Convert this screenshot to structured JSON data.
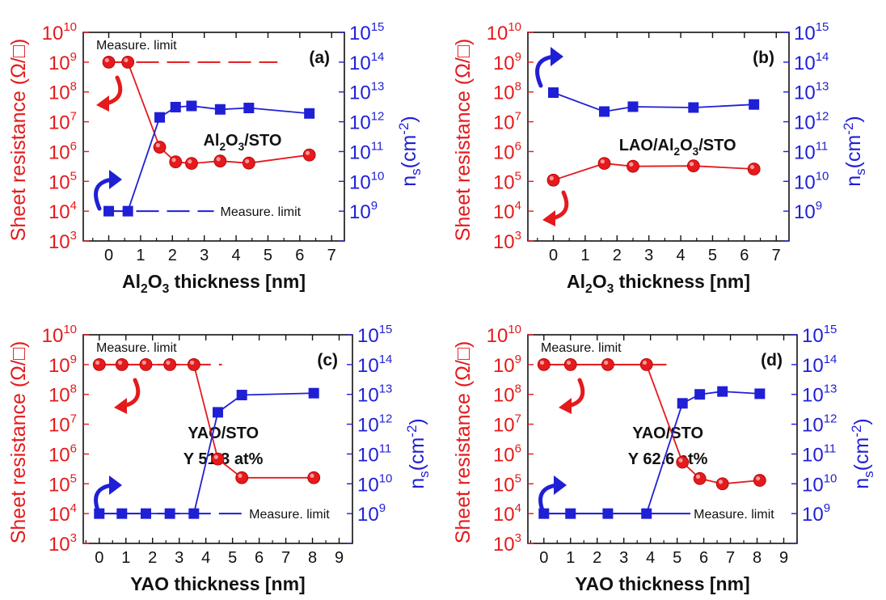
{
  "colors": {
    "resistance": "#e41a1c",
    "ns": "#1f1fd6",
    "axis": "#111111"
  },
  "chart_data": [
    {
      "type": "scatter",
      "panel_label": "(a)",
      "annotation": "Al2O3/STO",
      "annotation_lines": [
        "Al2O3/STO"
      ],
      "xlabel": "Al2O3 thickness [nm]",
      "ylabel_left": "Sheet resistance (Ω/□)",
      "ylabel_right": "ns(cm-2)",
      "xlim": [
        -0.8,
        7.4
      ],
      "xticks": [
        0,
        1,
        2,
        3,
        4,
        5,
        6,
        7
      ],
      "ylim_left": [
        1000,
        10000000000
      ],
      "ylim_right": [
        100000000,
        1000000000000000
      ],
      "y_scale": "log",
      "limit_left": {
        "label": "Measure. limit",
        "value": 1000000000,
        "x_range": [
          0,
          5.3
        ]
      },
      "limit_right": {
        "label": "Measure. limit",
        "value": 1000000000,
        "x_range": [
          0,
          3.3
        ]
      },
      "arrow_left": "curved arrow pointing left",
      "arrow_right": "curved arrow pointing right",
      "series": [
        {
          "axis": "left",
          "marker": "circle",
          "x": [
            0,
            0.6,
            1.6,
            2.1,
            2.6,
            3.5,
            4.4,
            6.3
          ],
          "y": [
            1000000000,
            1000000000,
            1400000,
            450000,
            400000,
            480000,
            410000,
            770000
          ]
        },
        {
          "axis": "right",
          "marker": "square",
          "x": [
            0,
            0.6,
            1.6,
            2.1,
            2.6,
            3.5,
            4.4,
            6.3
          ],
          "y": [
            1000000000,
            1000000000,
            1400000000000,
            3100000000000,
            3400000000000,
            2600000000000,
            2900000000000,
            1900000000000
          ]
        }
      ]
    },
    {
      "type": "scatter",
      "panel_label": "(b)",
      "annotation": "LAO/Al2O3/STO",
      "annotation_lines": [
        "LAO/Al2O3/STO"
      ],
      "xlabel": "Al2O3 thickness [nm]",
      "ylabel_left": "Sheet resistance (Ω/□)",
      "ylabel_right": "ns(cm-2)",
      "xlim": [
        -0.8,
        7.4
      ],
      "xticks": [
        0,
        1,
        2,
        3,
        4,
        5,
        6,
        7
      ],
      "ylim_left": [
        1000,
        10000000000
      ],
      "ylim_right": [
        100000000,
        1000000000000000
      ],
      "y_scale": "log",
      "arrow_left": "curved arrow pointing left",
      "arrow_right": "curved arrow pointing right",
      "series": [
        {
          "axis": "left",
          "marker": "circle",
          "x": [
            0,
            1.6,
            2.5,
            4.4,
            6.3
          ],
          "y": [
            110000,
            400000,
            320000,
            330000,
            260000
          ]
        },
        {
          "axis": "right",
          "marker": "square",
          "x": [
            0,
            1.6,
            2.5,
            4.4,
            6.3
          ],
          "y": [
            9500000000000,
            2200000000000,
            3200000000000,
            3000000000000,
            3800000000000
          ]
        }
      ]
    },
    {
      "type": "scatter",
      "panel_label": "(c)",
      "annotation": "YAO/STO Y 51.3 at%",
      "annotation_lines": [
        "YAO/STO",
        "Y 51.3 at%"
      ],
      "xlabel": "YAO thickness [nm]",
      "ylabel_left": "Sheet resistance (Ω/□)",
      "ylabel_right": "ns(cm-2)",
      "xlim": [
        -0.6,
        9.5
      ],
      "xticks": [
        0,
        1,
        2,
        3,
        4,
        5,
        6,
        7,
        8,
        9
      ],
      "ylim_left": [
        1000,
        10000000000
      ],
      "ylim_right": [
        100000000,
        1000000000000000
      ],
      "y_scale": "log",
      "limit_left": {
        "label": "Measure. limit",
        "value": 1000000000,
        "x_range": [
          0,
          4.6
        ]
      },
      "limit_right": {
        "label": "Measure. limit",
        "value": 1000000000,
        "x_range": [
          0,
          5.5
        ]
      },
      "arrow_left": "curved arrow pointing left",
      "arrow_right": "curved arrow pointing right",
      "series": [
        {
          "axis": "left",
          "marker": "circle",
          "x": [
            0,
            0.85,
            1.75,
            2.65,
            3.55,
            4.45,
            5.35,
            8.05
          ],
          "y": [
            1000000000,
            1000000000,
            1000000000,
            1000000000,
            1000000000,
            680000,
            160000,
            160000
          ]
        },
        {
          "axis": "right",
          "marker": "square",
          "x": [
            0,
            0.85,
            1.75,
            2.65,
            3.55,
            4.45,
            5.35,
            8.05
          ],
          "y": [
            1000000000,
            1000000000,
            1000000000,
            1000000000,
            1000000000,
            2500000000000,
            9500000000000,
            11000000000000
          ]
        }
      ]
    },
    {
      "type": "scatter",
      "panel_label": "(d)",
      "annotation": "YAO/STO Y 62.6 at%",
      "annotation_lines": [
        "YAO/STO",
        "Y 62.6 at%"
      ],
      "xlabel": "YAO thickness [nm]",
      "ylabel_left": "Sheet resistance (Ω/□)",
      "ylabel_right": "ns(cm-2)",
      "xlim": [
        -0.6,
        9.5
      ],
      "xticks": [
        0,
        1,
        2,
        3,
        4,
        5,
        6,
        7,
        8,
        9
      ],
      "ylim_left": [
        1000,
        10000000000
      ],
      "ylim_right": [
        100000000,
        1000000000000000
      ],
      "y_scale": "log",
      "limit_left": {
        "label": "Measure. limit",
        "value": 1000000000,
        "x_range": [
          0,
          4.6
        ]
      },
      "limit_right": {
        "label": "Measure. limit",
        "value": 1000000000,
        "x_range": [
          0,
          5.5
        ]
      },
      "arrow_left": "curved arrow pointing left",
      "arrow_right": "curved arrow pointing right",
      "series": [
        {
          "axis": "left",
          "marker": "circle",
          "x": [
            0,
            1.0,
            2.4,
            3.85,
            5.2,
            5.85,
            6.7,
            8.1
          ],
          "y": [
            1000000000,
            1000000000,
            1000000000,
            1000000000,
            530000,
            150000,
            100000,
            130000
          ]
        },
        {
          "axis": "right",
          "marker": "square",
          "x": [
            0,
            1.0,
            2.4,
            3.85,
            5.2,
            5.85,
            6.7,
            8.1
          ],
          "y": [
            1000000000,
            1000000000,
            1000000000,
            1000000000,
            5000000000000,
            10000000000000,
            12500000000000,
            10500000000000
          ]
        }
      ]
    }
  ]
}
